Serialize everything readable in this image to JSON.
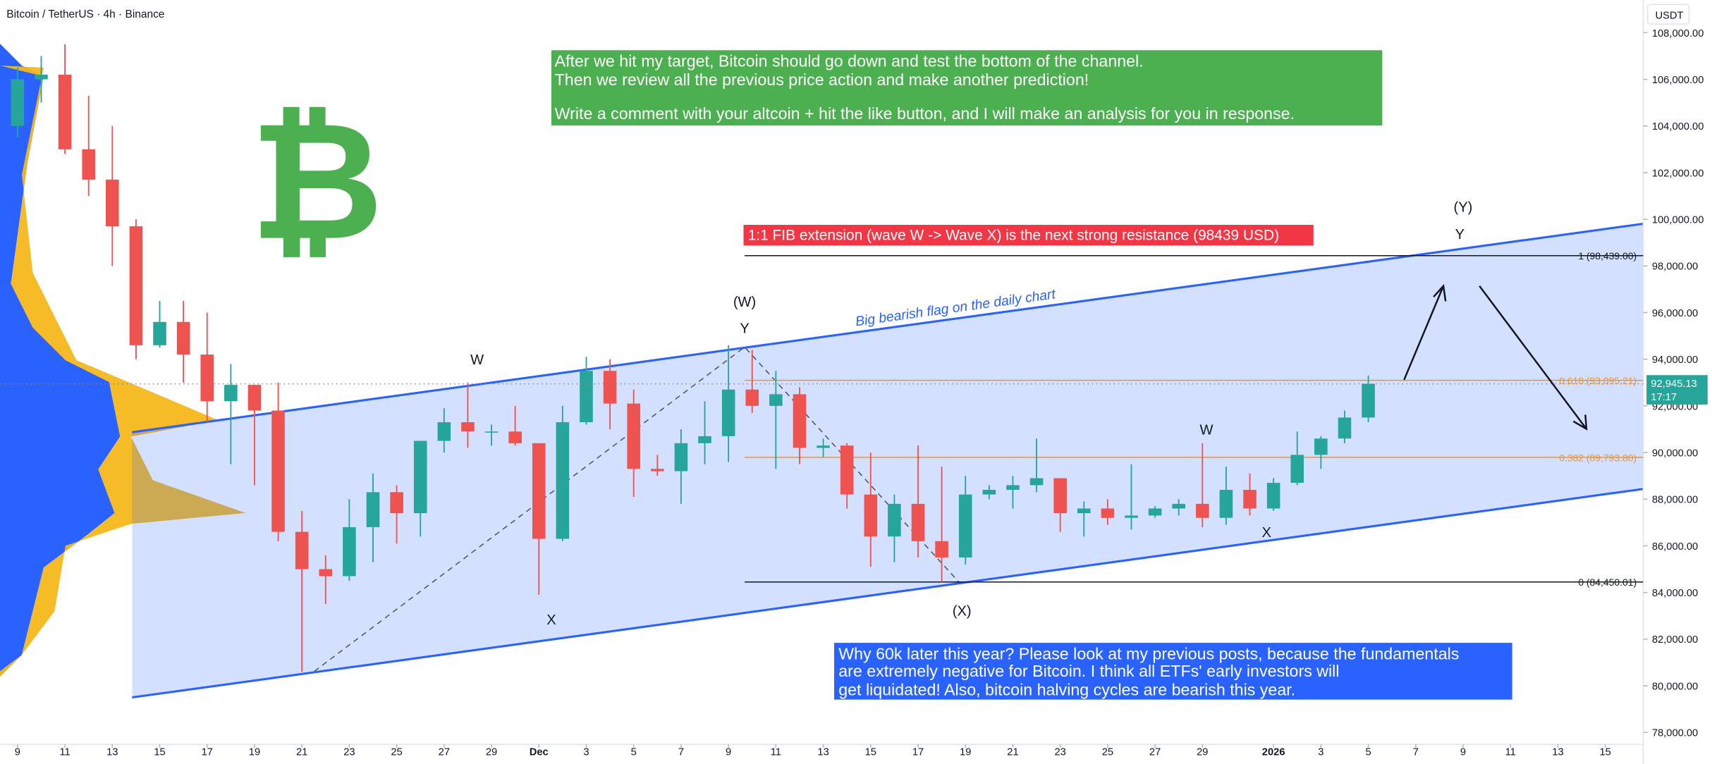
{
  "chart_data": {
    "type": "candlestick",
    "title": "Bitcoin / TetherUS · 4h · Binance",
    "unit": "USDT",
    "x": [
      0,
      1,
      2,
      3,
      4,
      5,
      6,
      7,
      8,
      9,
      10,
      11,
      12,
      13,
      14,
      15,
      16,
      17,
      18,
      19,
      20,
      21,
      22,
      23,
      24,
      25,
      26,
      27,
      28,
      29,
      30,
      31,
      32,
      33,
      34,
      35,
      36,
      37,
      38,
      39,
      40,
      41,
      42,
      43,
      44,
      45,
      46,
      47,
      48,
      49,
      50,
      51,
      52,
      53,
      54,
      55,
      56,
      57
    ],
    "open": [
      104000,
      106000,
      106200,
      103000,
      101700,
      99700,
      94600,
      95600,
      94200,
      92200,
      92900,
      91800,
      86600,
      85000,
      84700,
      86800,
      88300,
      87400,
      90500,
      91300,
      90900,
      90900,
      90400,
      86300,
      91300,
      93500,
      92100,
      89300,
      89200,
      90400,
      90700,
      92700,
      92000,
      92500,
      90200,
      90300,
      88200,
      86400,
      87800,
      86200,
      85500,
      88200,
      88400,
      88600,
      88900,
      87400,
      87600,
      87200,
      87300,
      87600,
      87800,
      87200,
      88400,
      87600,
      88700,
      89900,
      90600,
      91500
    ],
    "high": [
      106500,
      107000,
      107500,
      105300,
      104000,
      100000,
      96500,
      96500,
      96000,
      93800,
      92900,
      93000,
      87500,
      85600,
      88000,
      89100,
      88600,
      90500,
      91900,
      93000,
      91200,
      92000,
      90400,
      92000,
      94100,
      94000,
      92700,
      89900,
      91000,
      92200,
      94600,
      94400,
      93500,
      92800,
      90600,
      90400,
      90000,
      88200,
      90300,
      89400,
      89000,
      88600,
      89000,
      90600,
      88900,
      87900,
      88000,
      89500,
      87700,
      88000,
      90400,
      89400,
      89100,
      88900,
      90900,
      90700,
      91800,
      93300
    ],
    "low": [
      103500,
      105000,
      102800,
      101000,
      98000,
      94000,
      94500,
      93000,
      91300,
      89500,
      88600,
      86200,
      80600,
      83500,
      84500,
      85300,
      86100,
      86400,
      90000,
      90200,
      90300,
      90300,
      83900,
      86200,
      91200,
      91000,
      88100,
      89000,
      87800,
      89500,
      89600,
      91700,
      89300,
      89500,
      89800,
      87600,
      85100,
      85300,
      85500,
      84450,
      85200,
      88000,
      87600,
      88300,
      86600,
      86400,
      86900,
      86700,
      87200,
      87300,
      86800,
      86900,
      87300,
      87500,
      88600,
      89300,
      90400,
      91300
    ],
    "close": [
      106000,
      106200,
      103000,
      101700,
      99700,
      94600,
      95600,
      94200,
      92200,
      92900,
      91800,
      86600,
      85000,
      84700,
      86800,
      88300,
      87400,
      90500,
      91300,
      90900,
      90900,
      90400,
      86300,
      91300,
      93500,
      92100,
      89300,
      89200,
      90400,
      90700,
      92700,
      92000,
      92500,
      90200,
      90300,
      88200,
      86400,
      87800,
      86200,
      85500,
      88200,
      88400,
      88600,
      88900,
      87400,
      87600,
      87200,
      87300,
      87600,
      87800,
      87200,
      88400,
      87600,
      88700,
      89900,
      90600,
      91500,
      92945.13
    ],
    "up_color": "#26a69a",
    "down_color": "#ef5350",
    "xlim": [
      -0.74,
      68.6
    ],
    "ylim": [
      77490,
      109400
    ],
    "xticks": [
      {
        "value": 0,
        "label": "9"
      },
      {
        "value": 2,
        "label": "11"
      },
      {
        "value": 4,
        "label": "13"
      },
      {
        "value": 6,
        "label": "15"
      },
      {
        "value": 8,
        "label": "17"
      },
      {
        "value": 10,
        "label": "19"
      },
      {
        "value": 12,
        "label": "21"
      },
      {
        "value": 14,
        "label": "23"
      },
      {
        "value": 16,
        "label": "25"
      },
      {
        "value": 18,
        "label": "27"
      },
      {
        "value": 20,
        "label": "29"
      },
      {
        "value": 22,
        "label": "Dec"
      },
      {
        "value": 24,
        "label": "3"
      },
      {
        "value": 26,
        "label": "5"
      },
      {
        "value": 28,
        "label": "7"
      },
      {
        "value": 30,
        "label": "9"
      },
      {
        "value": 32,
        "label": "11"
      },
      {
        "value": 34,
        "label": "13"
      },
      {
        "value": 36,
        "label": "15"
      },
      {
        "value": 38,
        "label": "17"
      },
      {
        "value": 40,
        "label": "19"
      },
      {
        "value": 42,
        "label": "21"
      },
      {
        "value": 44,
        "label": "23"
      },
      {
        "value": 46,
        "label": "25"
      },
      {
        "value": 48,
        "label": "27"
      },
      {
        "value": 50,
        "label": "29"
      },
      {
        "value": 53,
        "label": "2026"
      },
      {
        "value": 55,
        "label": "3"
      },
      {
        "value": 57,
        "label": "5"
      },
      {
        "value": 59,
        "label": "7"
      },
      {
        "value": 61,
        "label": "9"
      },
      {
        "value": 63,
        "label": "11"
      },
      {
        "value": 65,
        "label": "13"
      },
      {
        "value": 67,
        "label": "15"
      }
    ],
    "yticks": [
      {
        "value": 78000,
        "label": "78,000.00"
      },
      {
        "value": 80000,
        "label": "80,000.00"
      },
      {
        "value": 82000,
        "label": "82,000.00"
      },
      {
        "value": 84000,
        "label": "84,000.00"
      },
      {
        "value": 86000,
        "label": "86,000.00"
      },
      {
        "value": 88000,
        "label": "88,000.00"
      },
      {
        "value": 90000,
        "label": "90,000.00"
      },
      {
        "value": 92000,
        "label": "92,000.00"
      },
      {
        "value": 94000,
        "label": "94,000.00"
      },
      {
        "value": 96000,
        "label": "96,000.00"
      },
      {
        "value": 98000,
        "label": "98,000.00"
      },
      {
        "value": 100000,
        "label": "100,000.00"
      },
      {
        "value": 102000,
        "label": "102,000.00"
      },
      {
        "value": 104000,
        "label": "104,000.00"
      },
      {
        "value": 106000,
        "label": "106,000.00"
      },
      {
        "value": 108000,
        "label": "108,000.00"
      }
    ],
    "last_price": {
      "value": 92945.13,
      "label": "92,945.13"
    },
    "countdown": "17:17",
    "last_color": "#26a69a",
    "fib_levels": [
      {
        "value": 98439,
        "label": "1 (98,439.00)",
        "color": "#131722"
      },
      {
        "value": 93095.21,
        "label": "0.618 (93,095.21)",
        "color": "#e8963a"
      },
      {
        "value": 89793.8,
        "label": "0.382 (89,793.80)",
        "color": "#e8963a"
      },
      {
        "value": 84450.01,
        "label": "0 (84,450.01)",
        "color": "#131722"
      }
    ]
  },
  "logo": "₿",
  "channel_label": "Big bearish flag on the daily chart",
  "wave_labels": [
    "W",
    "X",
    "(W)",
    "Y",
    "(X)",
    "W",
    "X",
    "(Y)",
    "Y"
  ],
  "notes": {
    "green": [
      "After we hit my target, Bitcoin should go down and test the bottom of the channel.",
      "Then we review all the previous price action and make another prediction!",
      "Write a comment with your altcoin + hit the like button, and I will make an analysis for you in response."
    ],
    "red": "1:1 FIB extension (wave W -> Wave X) is the next strong resistance (98439 USD)",
    "blue": [
      "Why 60k later this year? Please look at my previous posts, because the fundamentals",
      "are extremely negative for Bitcoin. I think all ETFs' early investors will",
      "get liquidated! Also, bitcoin halving cycles are bearish this year."
    ]
  }
}
